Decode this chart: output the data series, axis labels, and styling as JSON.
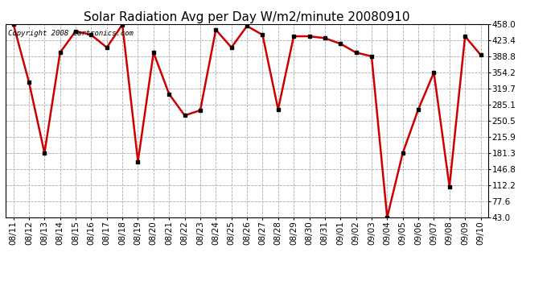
{
  "title": "Solar Radiation Avg per Day W/m2/minute 20080910",
  "copyright_text": "Copyright 2008 Cartronics.com",
  "dates": [
    "08/11",
    "08/12",
    "08/13",
    "08/14",
    "08/15",
    "08/16",
    "08/17",
    "08/18",
    "08/19",
    "08/20",
    "08/21",
    "08/22",
    "08/23",
    "08/24",
    "08/25",
    "08/26",
    "08/27",
    "08/28",
    "08/29",
    "08/30",
    "08/31",
    "09/01",
    "09/02",
    "09/03",
    "09/04",
    "09/05",
    "09/06",
    "09/07",
    "09/08",
    "09/09",
    "09/10"
  ],
  "values": [
    458.0,
    334.0,
    181.3,
    397.0,
    443.0,
    435.0,
    408.0,
    457.0,
    163.0,
    397.0,
    308.0,
    262.0,
    273.0,
    446.0,
    408.0,
    454.0,
    435.0,
    275.0,
    432.0,
    432.0,
    428.0,
    416.0,
    397.0,
    389.0,
    43.0,
    181.3,
    275.0,
    354.0,
    109.0,
    432.0,
    392.0
  ],
  "line_color": "#cc0000",
  "marker_color": "#000000",
  "background_color": "#ffffff",
  "grid_color": "#aaaaaa",
  "ymin": 43.0,
  "ymax": 458.0,
  "yticks": [
    458.0,
    423.4,
    388.8,
    354.2,
    319.7,
    285.1,
    250.5,
    215.9,
    181.3,
    146.8,
    112.2,
    77.6,
    43.0
  ],
  "title_fontsize": 11,
  "tick_fontsize": 7.5,
  "copyright_fontsize": 6.5
}
